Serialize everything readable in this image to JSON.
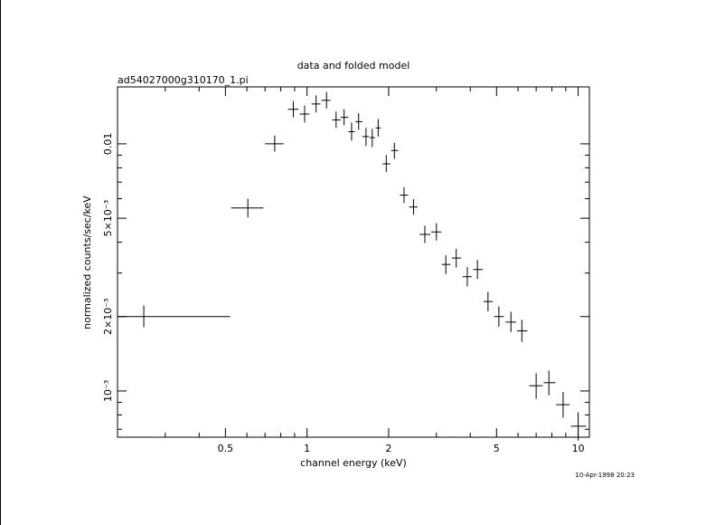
{
  "chart_data": {
    "type": "scatter",
    "title": "data and folded model",
    "subtitle": "ad54027000g310170_1.pi",
    "xlabel": "channel energy (keV)",
    "ylabel": "normalized counts/sec/keV",
    "footer": "10-Apr-1998 20:23",
    "x_scale": "log",
    "y_scale": "log",
    "xlim": [
      0.2,
      11
    ],
    "ylim": [
      0.00065,
      0.017
    ],
    "x_ticks": [
      {
        "value": 0.5,
        "label": "0.5"
      },
      {
        "value": 1,
        "label": "1"
      },
      {
        "value": 2,
        "label": "2"
      },
      {
        "value": 5,
        "label": "5"
      },
      {
        "value": 10,
        "label": "10"
      }
    ],
    "y_ticks": [
      {
        "value": 0.001,
        "label": "10⁻³"
      },
      {
        "value": 0.002,
        "label": "2×10⁻³"
      },
      {
        "value": 0.005,
        "label": "5×10⁻³"
      },
      {
        "value": 0.01,
        "label": "0.01"
      }
    ],
    "grid": false,
    "series": [
      {
        "points": [
          {
            "x": 0.25,
            "xlo": 0.2,
            "xhi": 0.52,
            "y": 0.002,
            "ylo": 0.00181,
            "yhi": 0.00222
          },
          {
            "x": 0.605,
            "xlo": 0.525,
            "xhi": 0.69,
            "y": 0.0055,
            "ylo": 0.00504,
            "yhi": 0.006
          },
          {
            "x": 0.76,
            "xlo": 0.7,
            "xhi": 0.82,
            "y": 0.01,
            "ylo": 0.0093,
            "yhi": 0.0108
          },
          {
            "x": 0.89,
            "xlo": 0.85,
            "xhi": 0.93,
            "y": 0.0138,
            "ylo": 0.0128,
            "yhi": 0.0149
          },
          {
            "x": 0.98,
            "xlo": 0.94,
            "xhi": 1.02,
            "y": 0.0132,
            "ylo": 0.0122,
            "yhi": 0.0143
          },
          {
            "x": 1.08,
            "xlo": 1.04,
            "xhi": 1.12,
            "y": 0.0145,
            "ylo": 0.0134,
            "yhi": 0.0157
          },
          {
            "x": 1.18,
            "xlo": 1.13,
            "xhi": 1.22,
            "y": 0.015,
            "ylo": 0.0139,
            "yhi": 0.0162
          },
          {
            "x": 1.28,
            "xlo": 1.24,
            "xhi": 1.33,
            "y": 0.0125,
            "ylo": 0.0116,
            "yhi": 0.0135
          },
          {
            "x": 1.37,
            "xlo": 1.33,
            "xhi": 1.42,
            "y": 0.0128,
            "ylo": 0.0119,
            "yhi": 0.0138
          },
          {
            "x": 1.46,
            "xlo": 1.42,
            "xhi": 1.5,
            "y": 0.0112,
            "ylo": 0.0103,
            "yhi": 0.0122
          },
          {
            "x": 1.55,
            "xlo": 1.51,
            "xhi": 1.6,
            "y": 0.0123,
            "ylo": 0.0114,
            "yhi": 0.0133
          },
          {
            "x": 1.65,
            "xlo": 1.6,
            "xhi": 1.69,
            "y": 0.0107,
            "ylo": 0.0098,
            "yhi": 0.0116
          },
          {
            "x": 1.74,
            "xlo": 1.7,
            "xhi": 1.78,
            "y": 0.0106,
            "ylo": 0.0097,
            "yhi": 0.0115
          },
          {
            "x": 1.83,
            "xlo": 1.79,
            "xhi": 1.87,
            "y": 0.0116,
            "ylo": 0.0107,
            "yhi": 0.0126
          },
          {
            "x": 1.96,
            "xlo": 1.9,
            "xhi": 2.03,
            "y": 0.0083,
            "ylo": 0.0077,
            "yhi": 0.009
          },
          {
            "x": 2.1,
            "xlo": 2.04,
            "xhi": 2.17,
            "y": 0.0094,
            "ylo": 0.0087,
            "yhi": 0.0101
          },
          {
            "x": 2.28,
            "xlo": 2.2,
            "xhi": 2.36,
            "y": 0.0062,
            "ylo": 0.00576,
            "yhi": 0.00668
          },
          {
            "x": 2.47,
            "xlo": 2.38,
            "xhi": 2.56,
            "y": 0.00555,
            "ylo": 0.00516,
            "yhi": 0.00597
          },
          {
            "x": 2.72,
            "xlo": 2.6,
            "xhi": 2.85,
            "y": 0.0043,
            "ylo": 0.00397,
            "yhi": 0.00466
          },
          {
            "x": 3.0,
            "xlo": 2.87,
            "xhi": 3.13,
            "y": 0.0044,
            "ylo": 0.00406,
            "yhi": 0.00477
          },
          {
            "x": 3.25,
            "xlo": 3.14,
            "xhi": 3.38,
            "y": 0.00325,
            "ylo": 0.00297,
            "yhi": 0.00354
          },
          {
            "x": 3.55,
            "xlo": 3.42,
            "xhi": 3.7,
            "y": 0.00345,
            "ylo": 0.00316,
            "yhi": 0.00376
          },
          {
            "x": 3.9,
            "xlo": 3.75,
            "xhi": 4.05,
            "y": 0.0029,
            "ylo": 0.00265,
            "yhi": 0.00317
          },
          {
            "x": 4.25,
            "xlo": 4.1,
            "xhi": 4.45,
            "y": 0.0031,
            "ylo": 0.00284,
            "yhi": 0.00339
          },
          {
            "x": 4.65,
            "xlo": 4.48,
            "xhi": 4.85,
            "y": 0.0023,
            "ylo": 0.0021,
            "yhi": 0.00252
          },
          {
            "x": 5.1,
            "xlo": 4.9,
            "xhi": 5.32,
            "y": 0.002,
            "ylo": 0.00182,
            "yhi": 0.0022
          },
          {
            "x": 5.65,
            "xlo": 5.4,
            "xhi": 5.9,
            "y": 0.0019,
            "ylo": 0.00173,
            "yhi": 0.00209
          },
          {
            "x": 6.2,
            "xlo": 5.95,
            "xhi": 6.5,
            "y": 0.00175,
            "ylo": 0.00158,
            "yhi": 0.00194
          },
          {
            "x": 7.0,
            "xlo": 6.6,
            "xhi": 7.4,
            "y": 0.00105,
            "ylo": 0.00093,
            "yhi": 0.00118
          },
          {
            "x": 7.8,
            "xlo": 7.45,
            "xhi": 8.25,
            "y": 0.00108,
            "ylo": 0.00096,
            "yhi": 0.00121
          },
          {
            "x": 8.8,
            "xlo": 8.3,
            "xhi": 9.3,
            "y": 0.00088,
            "ylo": 0.00078,
            "yhi": 0.00099
          },
          {
            "x": 10.0,
            "xlo": 9.4,
            "xhi": 10.7,
            "y": 0.00072,
            "ylo": 0.00063,
            "yhi": 0.00082
          }
        ]
      }
    ]
  }
}
